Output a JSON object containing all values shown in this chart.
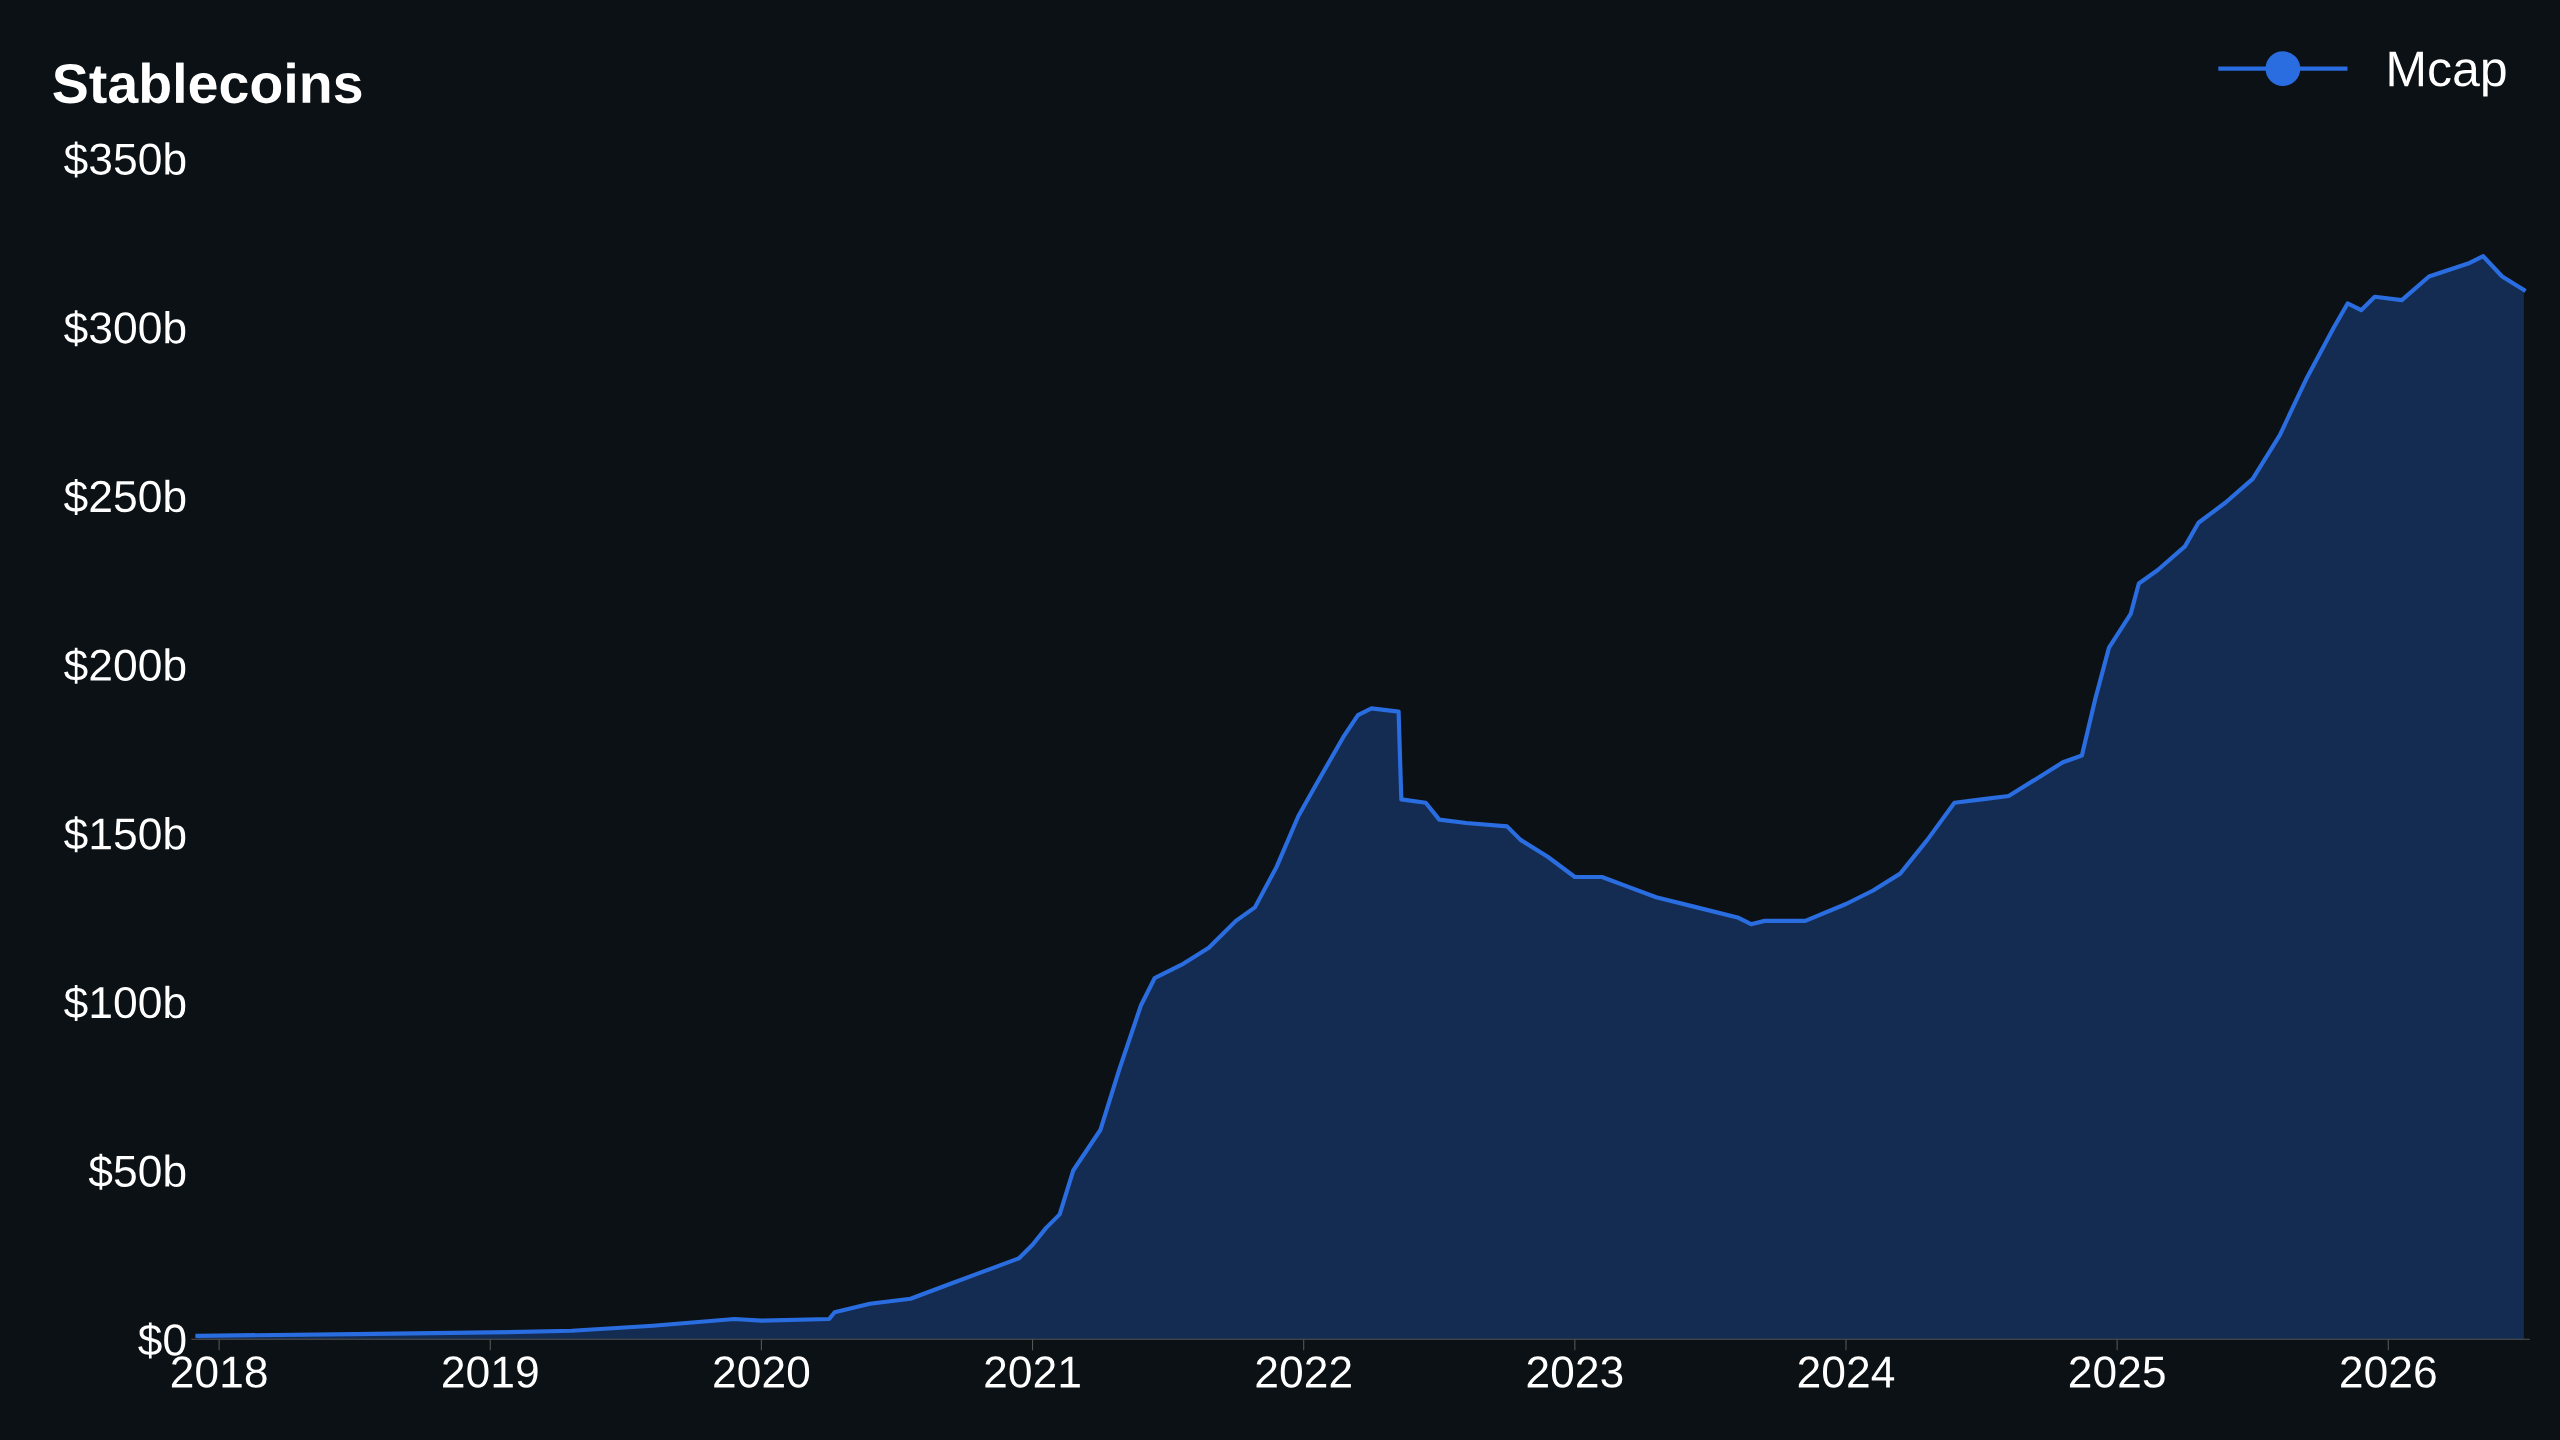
{
  "chart_data": {
    "type": "area",
    "title": "Stablecoins",
    "legend": "top right",
    "grid": false,
    "xlim": [
      2017.9,
      2026.52
    ],
    "xticks": [
      2018,
      2019,
      2020,
      2021,
      2022,
      2023,
      2024,
      2025,
      2026
    ],
    "ylim": [
      0,
      350
    ],
    "yticks": [
      {
        "value": 0,
        "label": "$0"
      },
      {
        "value": 50,
        "label": "$50b"
      },
      {
        "value": 100,
        "label": "$100b"
      },
      {
        "value": 150,
        "label": "$150b"
      },
      {
        "value": 200,
        "label": "$200b"
      },
      {
        "value": 250,
        "label": "$250b"
      },
      {
        "value": 300,
        "label": "$300b"
      },
      {
        "value": 350,
        "label": "$350b"
      }
    ],
    "series": [
      {
        "name": "Mcap",
        "color": "#2a6de0",
        "x": [
          2017.92,
          2018.5,
          2019.0,
          2019.3,
          2019.6,
          2019.9,
          2020.0,
          2020.25,
          2020.27,
          2020.4,
          2020.55,
          2020.7,
          2020.8,
          2020.95,
          2021.0,
          2021.05,
          2021.1,
          2021.15,
          2021.25,
          2021.32,
          2021.4,
          2021.45,
          2021.55,
          2021.65,
          2021.75,
          2021.82,
          2021.9,
          2021.98,
          2022.05,
          2022.15,
          2022.2,
          2022.25,
          2022.35,
          2022.36,
          2022.45,
          2022.5,
          2022.6,
          2022.75,
          2022.8,
          2022.9,
          2023.0,
          2023.1,
          2023.2,
          2023.3,
          2023.45,
          2023.6,
          2023.65,
          2023.7,
          2023.85,
          2024.0,
          2024.1,
          2024.2,
          2024.3,
          2024.4,
          2024.5,
          2024.6,
          2024.7,
          2024.8,
          2024.87,
          2024.92,
          2024.97,
          2025.05,
          2025.08,
          2025.15,
          2025.25,
          2025.3,
          2025.4,
          2025.5,
          2025.6,
          2025.7,
          2025.8,
          2025.85,
          2025.9,
          2025.95,
          2026.05,
          2026.15,
          2026.3,
          2026.35,
          2026.42,
          2026.5
        ],
        "values": [
          1,
          1.5,
          2,
          2.5,
          4,
          6,
          5.5,
          6,
          8,
          10.5,
          12,
          16.5,
          19.5,
          24,
          28,
          33,
          37,
          50,
          62,
          80,
          99,
          107,
          111,
          116,
          124,
          128,
          140,
          155,
          165,
          179,
          185,
          187,
          186,
          160,
          159,
          154,
          153,
          152,
          148,
          143,
          137,
          137,
          134,
          131,
          128,
          125,
          123,
          124,
          124,
          129,
          133,
          138,
          148,
          159,
          160,
          161,
          166,
          171,
          173,
          190,
          205,
          215,
          224,
          228,
          235,
          242,
          248,
          255,
          268,
          285,
          300,
          307,
          305,
          309,
          308,
          315,
          319,
          321,
          315,
          311
        ]
      }
    ]
  }
}
